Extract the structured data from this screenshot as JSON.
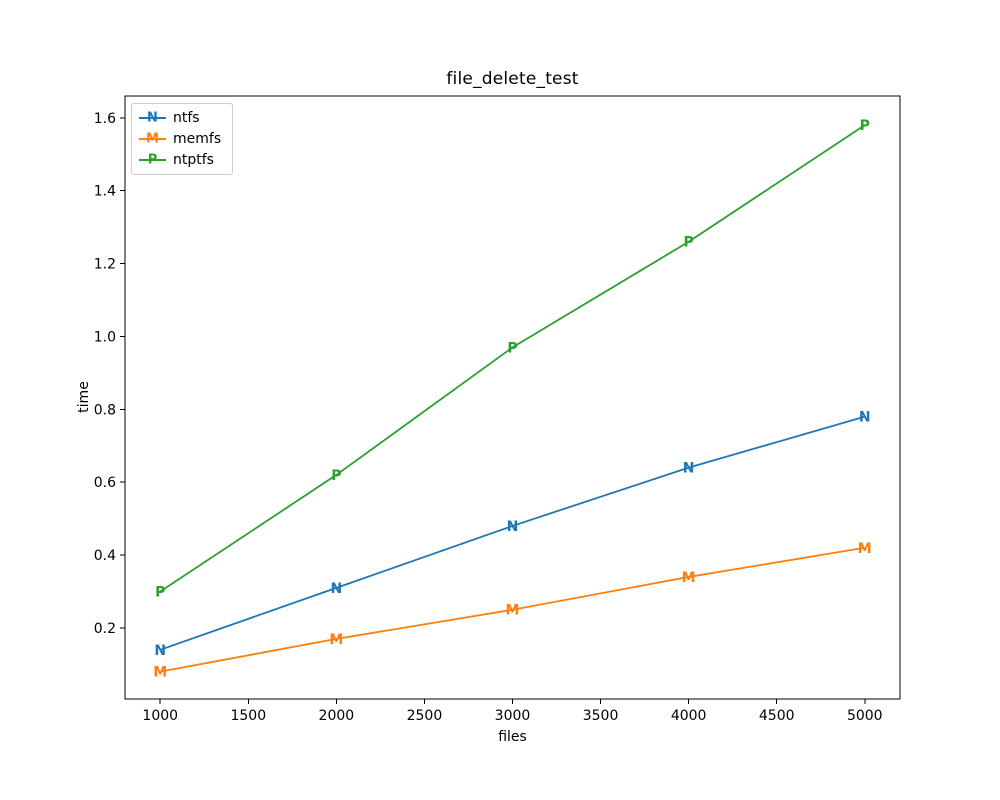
{
  "figure": {
    "background": "#ffffff",
    "axis_color": "#000000",
    "legend_border_color": "#cccccc"
  },
  "chart_data": {
    "type": "line",
    "title": "file_delete_test",
    "xlabel": "files",
    "ylabel": "time",
    "x": [
      1000,
      2000,
      3000,
      4000,
      5000
    ],
    "series": [
      {
        "name": "ntfs",
        "color": "#1f77b4",
        "marker": "N",
        "values": [
          0.14,
          0.31,
          0.48,
          0.64,
          0.78
        ]
      },
      {
        "name": "memfs",
        "color": "#ff7f0e",
        "marker": "M",
        "values": [
          0.08,
          0.17,
          0.25,
          0.34,
          0.42
        ]
      },
      {
        "name": "ntptfs",
        "color": "#2ca02c",
        "marker": "P",
        "values": [
          0.3,
          0.62,
          0.97,
          1.26,
          1.58
        ]
      }
    ],
    "xticks": [
      1000,
      1500,
      2000,
      2500,
      3000,
      3500,
      4000,
      4500,
      5000
    ],
    "yticks": [
      0.2,
      0.4,
      0.6,
      0.8,
      1.0,
      1.2,
      1.4,
      1.6
    ],
    "xlim": [
      800,
      5200
    ],
    "ylim": [
      0.005,
      1.66
    ],
    "grid": false,
    "legend_position": "upper-left"
  }
}
